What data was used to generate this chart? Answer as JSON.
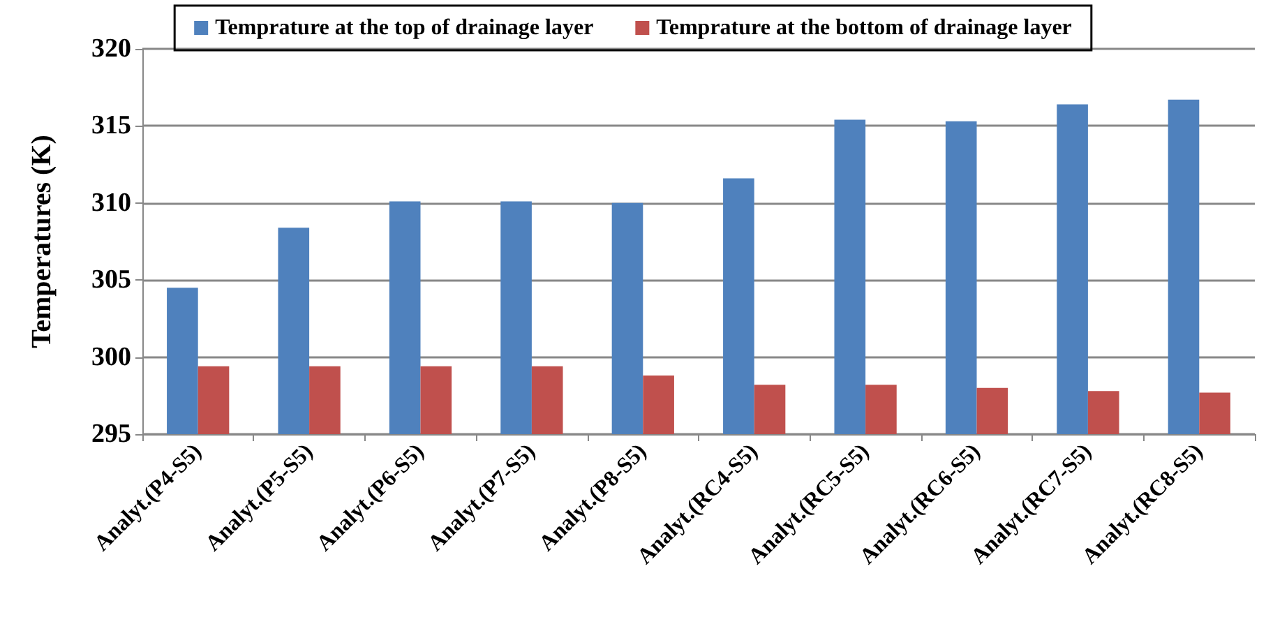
{
  "chart_data": {
    "type": "bar",
    "ylabel": "Temperatures (K)",
    "categories": [
      "Analyt.(P4-S5)",
      "Analyt.(P5-S5)",
      "Analyt.(P6-S5)",
      "Analyt.(P7-S5)",
      "Analyt.(P8-S5)",
      "Analyt.(RC4-S5)",
      "Analyt.(RC5-S5)",
      "Analyt.(RC6-S5)",
      "Analyt.(RC7-S5)",
      "Analyt.(RC8-S5)"
    ],
    "series": [
      {
        "name": "Temprature at the top of drainage layer",
        "color": "#4f81bd",
        "values": [
          304.5,
          308.4,
          310.1,
          310.1,
          310.0,
          311.6,
          315.4,
          315.3,
          316.4,
          316.7
        ]
      },
      {
        "name": "Temprature at the bottom of drainage layer",
        "color": "#c0504d",
        "values": [
          299.4,
          299.4,
          299.4,
          299.4,
          298.8,
          298.2,
          298.2,
          298.0,
          297.8,
          297.7
        ]
      }
    ],
    "ylim": [
      295,
      320
    ],
    "yticks": [
      295,
      300,
      305,
      310,
      315,
      320
    ],
    "grid": "y",
    "legend": "top"
  }
}
